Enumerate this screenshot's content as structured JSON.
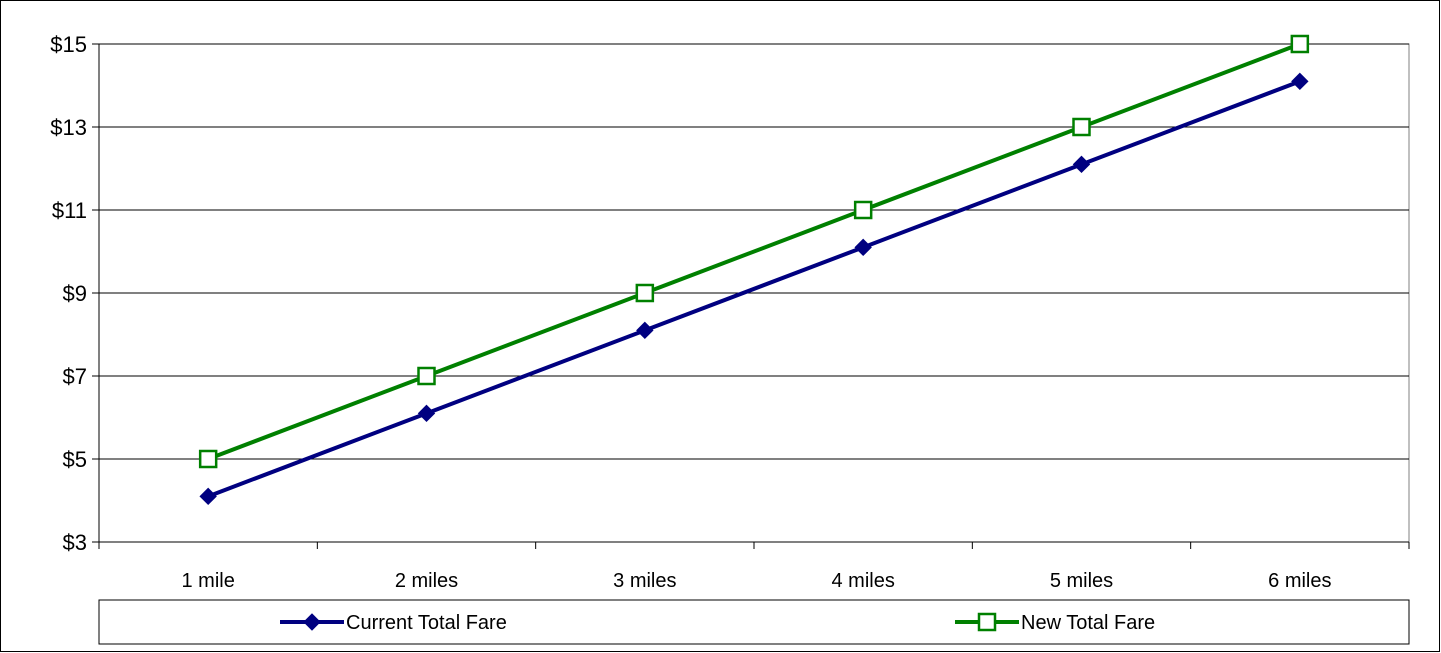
{
  "chart_data": {
    "type": "line",
    "title": "",
    "xlabel": "",
    "ylabel": "",
    "categories": [
      "1 mile",
      "2 miles",
      "3 miles",
      "4 miles",
      "5 miles",
      "6 miles"
    ],
    "ylim": [
      3,
      15
    ],
    "yticks": [
      3,
      5,
      7,
      9,
      11,
      13,
      15
    ],
    "ytick_labels": [
      "$3",
      "$5",
      "$7",
      "$9",
      "$11",
      "$13",
      "$15"
    ],
    "grid": true,
    "legend_position": "bottom",
    "series": [
      {
        "name": "Current Total Fare",
        "values": [
          4.1,
          6.1,
          8.1,
          10.1,
          12.1,
          14.1
        ],
        "color": "#000080",
        "marker": "filled-diamond"
      },
      {
        "name": "New Total Fare",
        "values": [
          5,
          7,
          9,
          11,
          13,
          15
        ],
        "color": "#008000",
        "marker": "hollow-square"
      }
    ]
  }
}
